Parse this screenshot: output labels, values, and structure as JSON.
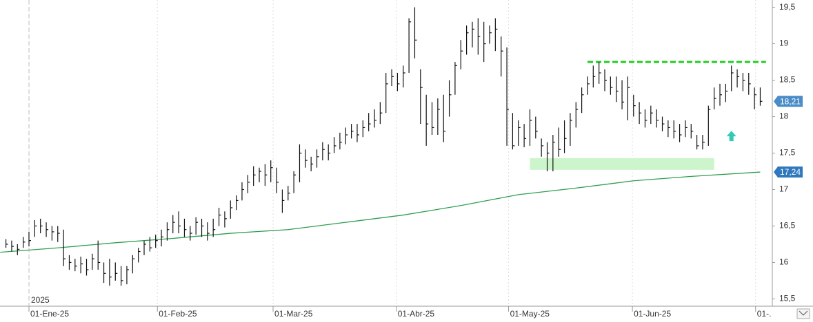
{
  "chart_data": {
    "type": "ohlc",
    "color": "#111111",
    "x": [
      -4,
      -3,
      -2,
      -1,
      0,
      1,
      2,
      3,
      4,
      5,
      6,
      7,
      8,
      9,
      10,
      11,
      12,
      13,
      14,
      15,
      16,
      17,
      18,
      19,
      20,
      21,
      22,
      23,
      24,
      25,
      26,
      27,
      28,
      29,
      30,
      31,
      32,
      33,
      34,
      35,
      36,
      37,
      38,
      39,
      40,
      41,
      42,
      43,
      44,
      45,
      46,
      47,
      48,
      49,
      50,
      51,
      52,
      53,
      54,
      55,
      56,
      57,
      58,
      59,
      60,
      61,
      62,
      63,
      64,
      65,
      66,
      67,
      68,
      69,
      70,
      71,
      72,
      73,
      74,
      75,
      76,
      77,
      78,
      79,
      80,
      81,
      82,
      83,
      84,
      85,
      86,
      87,
      88,
      89,
      90,
      91,
      92,
      93,
      94,
      95,
      96,
      97,
      98,
      99,
      100,
      101,
      102,
      103,
      104,
      105,
      106,
      107,
      108,
      109,
      110,
      111,
      112,
      113,
      114,
      115,
      116,
      117,
      118,
      119,
      120,
      121,
      122,
      123,
      124,
      125,
      126,
      127
    ],
    "high": [
      16.32,
      16.3,
      16.25,
      16.35,
      16.42,
      16.58,
      16.6,
      16.55,
      16.5,
      16.5,
      16.45,
      16.1,
      16.05,
      16.08,
      16.05,
      16.12,
      16.3,
      16.0,
      16.05,
      16.0,
      15.95,
      15.95,
      16.1,
      16.2,
      16.3,
      16.35,
      16.38,
      16.45,
      16.55,
      16.65,
      16.7,
      16.6,
      16.5,
      16.62,
      16.6,
      16.55,
      16.6,
      16.75,
      16.7,
      16.85,
      16.92,
      17.1,
      17.2,
      17.32,
      17.3,
      17.35,
      17.4,
      17.3,
      17.0,
      17.05,
      17.25,
      17.62,
      17.55,
      17.45,
      17.55,
      17.65,
      17.62,
      17.72,
      17.78,
      17.85,
      17.9,
      17.9,
      17.95,
      18.05,
      18.1,
      18.2,
      18.6,
      18.65,
      18.6,
      18.7,
      19.35,
      19.5,
      18.65,
      18.3,
      18.2,
      18.25,
      18.3,
      18.5,
      18.75,
      19.05,
      19.25,
      19.3,
      19.35,
      19.3,
      19.25,
      19.35,
      19.1,
      18.95,
      18.05,
      17.95,
      17.9,
      18.1,
      18.0,
      17.7,
      17.65,
      17.75,
      17.85,
      17.95,
      18.05,
      18.2,
      18.4,
      18.55,
      18.7,
      18.75,
      18.65,
      18.55,
      18.55,
      18.5,
      18.55,
      18.3,
      18.2,
      18.1,
      18.15,
      18.1,
      18.0,
      17.95,
      17.95,
      17.9,
      17.95,
      17.9,
      17.75,
      17.75,
      18.15,
      18.4,
      18.45,
      18.45,
      18.7,
      18.65,
      18.6,
      18.6,
      18.4,
      18.4
    ],
    "low": [
      16.2,
      16.15,
      16.1,
      16.2,
      16.22,
      16.35,
      16.4,
      16.35,
      16.3,
      16.28,
      15.95,
      15.9,
      15.88,
      15.85,
      15.82,
      15.9,
      15.9,
      15.72,
      15.68,
      15.75,
      15.68,
      15.7,
      15.85,
      16.0,
      16.1,
      16.15,
      16.2,
      16.22,
      16.3,
      16.4,
      16.4,
      16.35,
      16.3,
      16.38,
      16.35,
      16.3,
      16.35,
      16.5,
      16.48,
      16.6,
      16.72,
      16.85,
      16.95,
      17.05,
      17.1,
      17.05,
      17.1,
      16.95,
      16.68,
      16.85,
      16.95,
      17.1,
      17.3,
      17.25,
      17.3,
      17.4,
      17.4,
      17.5,
      17.55,
      17.62,
      17.7,
      17.65,
      17.72,
      17.8,
      17.85,
      17.9,
      18.05,
      18.42,
      18.35,
      18.4,
      18.6,
      18.8,
      17.9,
      17.6,
      17.75,
      17.75,
      17.65,
      18.0,
      18.3,
      18.65,
      18.85,
      18.95,
      18.85,
      18.75,
      19.0,
      18.9,
      18.55,
      17.6,
      17.55,
      17.6,
      17.58,
      17.6,
      17.7,
      17.45,
      17.25,
      17.25,
      17.45,
      17.5,
      17.6,
      17.85,
      18.05,
      18.3,
      18.4,
      18.45,
      18.35,
      18.3,
      18.2,
      18.1,
      17.95,
      18.0,
      17.9,
      17.85,
      17.9,
      17.85,
      17.8,
      17.72,
      17.7,
      17.65,
      17.72,
      17.7,
      17.55,
      17.55,
      17.6,
      18.1,
      18.15,
      18.2,
      18.35,
      18.4,
      18.35,
      18.3,
      18.1,
      18.15
    ],
    "close": [
      16.25,
      16.22,
      16.18,
      16.28,
      16.3,
      16.5,
      16.5,
      16.45,
      16.42,
      16.4,
      16.05,
      16.0,
      15.95,
      15.98,
      15.9,
      16.05,
      16.0,
      15.85,
      15.8,
      15.85,
      15.75,
      15.9,
      16.05,
      16.15,
      16.25,
      16.2,
      16.3,
      16.35,
      16.45,
      16.55,
      16.5,
      16.45,
      16.4,
      16.55,
      16.5,
      16.4,
      16.45,
      16.65,
      16.6,
      16.75,
      16.85,
      17.0,
      17.1,
      17.2,
      17.25,
      17.2,
      17.3,
      17.1,
      16.85,
      16.95,
      17.2,
      17.5,
      17.4,
      17.35,
      17.45,
      17.55,
      17.5,
      17.6,
      17.65,
      17.75,
      17.8,
      17.75,
      17.85,
      17.9,
      17.95,
      18.05,
      18.45,
      18.55,
      18.45,
      18.6,
      19.3,
      19.05,
      18.4,
      17.9,
      17.85,
      18.1,
      17.8,
      18.3,
      18.7,
      18.9,
      19.15,
      19.2,
      19.1,
      19.0,
      19.15,
      19.2,
      18.9,
      18.1,
      17.6,
      17.85,
      17.7,
      17.95,
      17.8,
      17.6,
      17.5,
      17.65,
      17.55,
      17.7,
      17.95,
      18.1,
      18.3,
      18.45,
      18.55,
      18.6,
      18.5,
      18.4,
      18.35,
      18.2,
      18.4,
      18.15,
      18.05,
      17.95,
      18.05,
      17.95,
      17.9,
      17.85,
      17.8,
      17.75,
      17.85,
      17.8,
      17.6,
      17.65,
      18.1,
      18.25,
      18.3,
      18.35,
      18.6,
      18.55,
      18.5,
      18.45,
      18.3,
      18.21
    ],
    "moving_average": {
      "color": "#2e9e4f",
      "x": [
        -5,
        5,
        15,
        25,
        35,
        45,
        55,
        65,
        75,
        85,
        95,
        105,
        115,
        127
      ],
      "values": [
        16.14,
        16.2,
        16.27,
        16.33,
        16.4,
        16.45,
        16.55,
        16.65,
        16.78,
        16.93,
        17.02,
        17.12,
        17.18,
        17.24
      ]
    },
    "resistance": {
      "color": "#22cc22",
      "value": 18.75,
      "x": [
        97,
        128
      ]
    },
    "support_zone": {
      "color": "#ccf5cc",
      "ylim": [
        17.27,
        17.43
      ],
      "xlim": [
        87,
        119
      ]
    },
    "arrow": {
      "color": "#33c9b8",
      "x": 122,
      "value": 17.73
    },
    "last_price": {
      "value": 18.21,
      "label": "18,21"
    },
    "ma_last": {
      "value": 17.24,
      "label": "17,24"
    },
    "year_label": "2025",
    "xlim": [
      -5.03,
      129.1
    ],
    "ylim": [
      15.4,
      19.6
    ],
    "xticks": [
      {
        "value": 0,
        "label": "01-Ene-25"
      },
      {
        "value": 22.3,
        "label": "01-Feb-25"
      },
      {
        "value": 42.4,
        "label": "01-Mar-25"
      },
      {
        "value": 63.8,
        "label": "01-Abr-25"
      },
      {
        "value": 83.3,
        "label": "01-May-25"
      },
      {
        "value": 104.8,
        "label": "01-Jun-25"
      },
      {
        "value": 126.2,
        "label": "01-."
      }
    ],
    "yticks": [
      {
        "value": 15.5,
        "label": "15,5"
      },
      16,
      {
        "value": 16.5,
        "label": "16,5"
      },
      17,
      {
        "value": 17.5,
        "label": "17,5"
      },
      18,
      {
        "value": 18.5,
        "label": "18,5"
      },
      19,
      {
        "value": 19.5,
        "label": "19,5"
      }
    ]
  }
}
